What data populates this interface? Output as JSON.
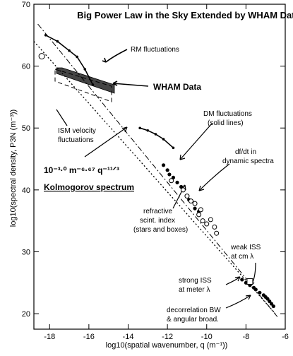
{
  "chart_data": {
    "type": "scatter",
    "title": "Big Power Law in the Sky Extended by WHAM Data",
    "xlabel": "log10(spatial wavenumber, q (m⁻¹))",
    "ylabel": "log10(spectral density, P3N (m⁻³))",
    "xlim": [
      -18.8,
      -6
    ],
    "ylim": [
      17.5,
      70
    ],
    "x_ticks": [
      -18,
      -16,
      -14,
      -12,
      -10,
      -8,
      -6
    ],
    "y_ticks": [
      20,
      30,
      40,
      50,
      60,
      70
    ],
    "grid": false,
    "power_law": {
      "formula": "10⁻³·⁰ m⁻⁶·⁶⁷ q⁻¹¹ᐟ³",
      "label": "Kolmogorov spectrum",
      "x": [
        -18.8,
        -6.5
      ],
      "y": [
        64.0,
        20.0
      ]
    },
    "annotations": [
      {
        "id": "rm",
        "text": "RM fluctuations"
      },
      {
        "id": "wham",
        "text": "WHAM Data"
      },
      {
        "id": "ism",
        "lines": [
          "ISM velocity",
          "fluctuations"
        ]
      },
      {
        "id": "dm",
        "lines": [
          "DM fluctuations",
          "(solid lines)"
        ]
      },
      {
        "id": "dfdt",
        "lines": [
          "df/dt in",
          "dynamic spectra"
        ]
      },
      {
        "id": "refr",
        "lines": [
          "refractive",
          "scint. index",
          "(stars and boxes)"
        ]
      },
      {
        "id": "weak",
        "lines": [
          "weak ISS",
          "at cm λ"
        ]
      },
      {
        "id": "strong",
        "lines": [
          "strong ISS",
          "at meter λ"
        ]
      },
      {
        "id": "decorr",
        "lines": [
          "decorrelation BW",
          "& angular broad."
        ]
      }
    ],
    "series": [
      {
        "id": "rm",
        "x": [
          -18.2,
          -17.6,
          -17.0,
          -16.6,
          -16.2,
          -15.8
        ],
        "y": [
          65.0,
          64.0,
          62.5,
          61.5,
          59.5,
          57.0
        ]
      },
      {
        "id": "dm",
        "x": [
          -13.4,
          -13.0,
          -12.6,
          -12.2,
          -11.7
        ],
        "y": [
          50.0,
          49.6,
          49.0,
          48.2,
          46.8
        ]
      },
      {
        "id": "scint_filled",
        "x": [
          -12.2,
          -12.0,
          -11.9,
          -11.7,
          -11.5,
          -11.3,
          -11.0,
          -10.9,
          -10.6,
          -10.4,
          -8.2,
          -8.0,
          -7.8,
          -7.6,
          -7.5,
          -7.3,
          -7.1,
          -7.0,
          -6.9,
          -6.8,
          -6.7,
          -6.6
        ],
        "y": [
          44.0,
          43.2,
          42.5,
          42.0,
          41.2,
          40.5,
          39.0,
          38.4,
          37.0,
          36.5,
          25.5,
          25.0,
          24.6,
          24.2,
          23.9,
          23.4,
          23.0,
          22.7,
          22.4,
          22.0,
          21.6,
          21.2
        ]
      },
      {
        "id": "scint_open",
        "x": [
          -11.8,
          -11.2,
          -11.0,
          -10.6,
          -10.4,
          -10.2,
          -10.0,
          -9.8,
          -9.6,
          -9.5,
          -10.8,
          -10.3
        ],
        "y": [
          41.5,
          40.0,
          39.0,
          37.8,
          36.0,
          35.0,
          34.5,
          35.2,
          34.0,
          33.0,
          38.2,
          36.8
        ]
      }
    ]
  }
}
